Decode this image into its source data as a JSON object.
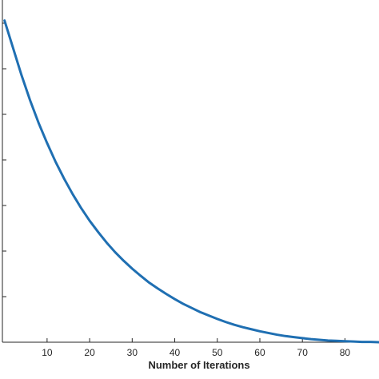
{
  "chart_data": {
    "type": "line",
    "title": "",
    "xlabel": "Number of Iterations",
    "ylabel": "",
    "xlim": [
      -0.5,
      88
    ],
    "ylim": [
      0,
      1
    ],
    "x_ticks": [
      10,
      20,
      30,
      40,
      50,
      60,
      70,
      80
    ],
    "y_tick_count": 7,
    "grid": false,
    "line_color": "#1f6fb2",
    "series": [
      {
        "x": [
          0,
          2,
          4,
          6,
          8,
          10,
          12,
          14,
          16,
          18,
          20,
          22,
          24,
          26,
          28,
          30,
          32,
          34,
          36,
          38,
          40,
          42,
          44,
          46,
          48,
          50,
          52,
          54,
          56,
          58,
          60,
          62,
          64,
          66,
          68,
          70,
          72,
          74,
          76,
          78,
          80,
          82,
          84,
          86,
          88
        ],
        "y": [
          0.94,
          0.86,
          0.78,
          0.707,
          0.641,
          0.582,
          0.527,
          0.478,
          0.433,
          0.392,
          0.355,
          0.322,
          0.291,
          0.263,
          0.238,
          0.215,
          0.194,
          0.174,
          0.157,
          0.141,
          0.126,
          0.112,
          0.1,
          0.088,
          0.078,
          0.068,
          0.059,
          0.051,
          0.044,
          0.038,
          0.032,
          0.027,
          0.022,
          0.018,
          0.015,
          0.012,
          0.009,
          0.007,
          0.005,
          0.004,
          0.003,
          0.002,
          0.001,
          0.001,
          0
        ]
      }
    ]
  }
}
